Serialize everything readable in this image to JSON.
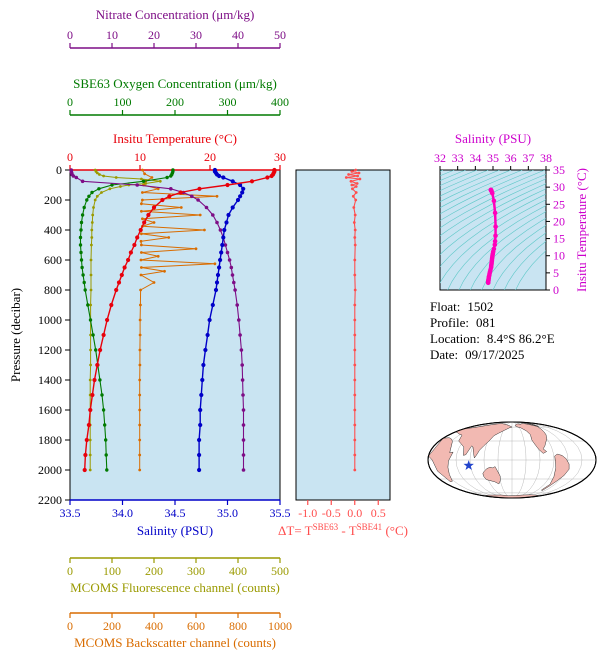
{
  "colors": {
    "nitrate": "#7d0d86",
    "oxygen": "#007a00",
    "temperature": "#e8000b",
    "salinity": "#0000c8",
    "fluorescence": "#9a9a00",
    "backscatter": "#d96c00",
    "deltaT": "#ff4d4d",
    "ts_line": "#ff00bb",
    "ts_labels": "#cc00cc",
    "plot_bg": "#c9e4f2",
    "contour": "#5ec8c8",
    "land": "#f2b9b2",
    "ocean": "#ffffff",
    "star": "#2244cc",
    "frame": "#000000"
  },
  "info": {
    "float_label": "Float:",
    "float_value": "1502",
    "profile_label": "Profile:",
    "profile_value": "081",
    "location_label": "Location:",
    "location_value": "8.4°S  86.2°E",
    "date_label": "Date:",
    "date_value": "09/17/2025"
  },
  "map": {
    "star_lon": 86.2,
    "star_lat": -8.4
  },
  "chart_data": [
    {
      "type": "line",
      "name": "bgc-float-profiles",
      "ylabel": "Pressure (decibar)",
      "ylim": [
        0,
        2200
      ],
      "yticks": [
        0,
        200,
        400,
        600,
        800,
        1000,
        1200,
        1400,
        1600,
        1800,
        2000,
        2200
      ],
      "x_axes": {
        "nitrate": {
          "title": "Nitrate Concentration (μm/kg)",
          "lim": [
            0,
            50
          ],
          "ticks": [
            0,
            10,
            20,
            30,
            40,
            50
          ]
        },
        "oxygen": {
          "title": "SBE63 Oxygen Concentration (μm/kg)",
          "lim": [
            0,
            400
          ],
          "ticks": [
            0,
            100,
            200,
            300,
            400
          ]
        },
        "temperature": {
          "title": "Insitu Temperature (°C)",
          "lim": [
            0,
            30
          ],
          "ticks": [
            0,
            10,
            20,
            30
          ]
        },
        "salinity": {
          "title": "Salinity (PSU)",
          "lim": [
            33.5,
            35.5
          ],
          "ticks": [
            33.5,
            34.0,
            34.5,
            35.0,
            35.5
          ],
          "tick_labels": [
            "33.5",
            "34.0",
            "34.5",
            "35.0",
            "35.5"
          ]
        },
        "fluorescence": {
          "title": "MCOMS Fluorescence channel (counts)",
          "lim": [
            0,
            500
          ],
          "ticks": [
            0,
            100,
            200,
            300,
            400,
            500
          ]
        },
        "backscatter": {
          "title": "MCOMS Backscatter channel (counts)",
          "lim": [
            0,
            1000
          ],
          "ticks": [
            0,
            200,
            400,
            600,
            800,
            1000
          ]
        }
      },
      "series": [
        {
          "axis": "backscatter",
          "lw": 1.0,
          "mr": 1.4,
          "pressure": [
            0,
            25,
            50,
            75,
            100,
            125,
            150,
            175,
            200,
            225,
            250,
            275,
            300,
            325,
            350,
            375,
            400,
            425,
            450,
            475,
            500,
            525,
            550,
            575,
            600,
            625,
            650,
            675,
            700,
            750,
            800,
            900,
            1000,
            1100,
            1200,
            1300,
            1400,
            1500,
            1600,
            1700,
            1800,
            1900,
            2000
          ],
          "values": [
            345,
            355,
            390,
            360,
            350,
            420,
            345,
            700,
            345,
            340,
            530,
            340,
            620,
            345,
            400,
            345,
            640,
            340,
            470,
            338,
            340,
            600,
            340,
            420,
            338,
            690,
            340,
            450,
            338,
            400,
            336,
            335,
            334,
            334,
            333,
            333,
            332,
            332,
            332,
            332,
            332,
            332,
            332
          ]
        },
        {
          "axis": "fluorescence",
          "lw": 1.0,
          "mr": 1.4,
          "pressure": [
            0,
            10,
            20,
            30,
            40,
            50,
            60,
            75,
            90,
            100,
            110,
            125,
            150,
            175,
            200,
            250,
            300,
            350,
            400,
            450,
            500,
            600,
            700,
            800,
            900,
            1000,
            1100,
            1200,
            1300,
            1400,
            1500,
            1600,
            1700,
            1800,
            1900,
            2000
          ],
          "values": [
            60,
            62,
            65,
            70,
            80,
            110,
            170,
            215,
            180,
            140,
            120,
            95,
            75,
            65,
            60,
            56,
            54,
            53,
            52,
            52,
            51,
            50,
            50,
            50,
            49,
            49,
            49,
            49,
            49,
            48,
            48,
            48,
            48,
            48,
            48,
            48
          ]
        },
        {
          "axis": "oxygen",
          "lw": 1.1,
          "mr": 1.7,
          "pressure": [
            0,
            10,
            20,
            30,
            40,
            50,
            75,
            100,
            125,
            150,
            175,
            200,
            250,
            300,
            350,
            400,
            450,
            500,
            550,
            600,
            650,
            700,
            750,
            800,
            900,
            1000,
            1100,
            1200,
            1300,
            1400,
            1500,
            1600,
            1700,
            1800,
            1900,
            2000
          ],
          "values": [
            196,
            196,
            195,
            194,
            192,
            185,
            140,
            80,
            55,
            42,
            36,
            32,
            27,
            24,
            22,
            21,
            20,
            20,
            21,
            22,
            23,
            25,
            27,
            29,
            34,
            39,
            44,
            49,
            53,
            57,
            61,
            64,
            66,
            68,
            69,
            70
          ]
        },
        {
          "axis": "nitrate",
          "lw": 1.1,
          "mr": 1.8,
          "pressure": [
            0,
            10,
            20,
            30,
            40,
            50,
            75,
            100,
            125,
            150,
            175,
            200,
            250,
            300,
            350,
            400,
            450,
            500,
            550,
            600,
            650,
            700,
            750,
            800,
            900,
            1000,
            1100,
            1200,
            1300,
            1400,
            1500,
            1600,
            1700,
            1800,
            1900,
            2000
          ],
          "values": [
            0.3,
            0.3,
            0.4,
            0.5,
            0.8,
            1.5,
            3.0,
            16.0,
            24.0,
            27.0,
            29.0,
            30.5,
            32.5,
            34.0,
            35.0,
            35.8,
            36.5,
            37.0,
            37.5,
            38.0,
            38.4,
            38.7,
            39.0,
            39.3,
            39.8,
            40.2,
            40.5,
            40.8,
            41.0,
            41.1,
            41.2,
            41.3,
            41.3,
            41.3,
            41.3,
            41.3
          ]
        },
        {
          "axis": "salinity",
          "lw": 1.4,
          "mr": 2.1,
          "pressure": [
            0,
            10,
            20,
            30,
            40,
            50,
            75,
            100,
            125,
            150,
            175,
            200,
            250,
            300,
            350,
            400,
            450,
            500,
            550,
            600,
            650,
            700,
            750,
            800,
            900,
            1000,
            1100,
            1200,
            1300,
            1400,
            1500,
            1600,
            1700,
            1800,
            1900,
            2000
          ],
          "values": [
            34.88,
            34.88,
            34.89,
            34.9,
            34.92,
            34.96,
            35.05,
            35.12,
            35.15,
            35.14,
            35.12,
            35.1,
            35.05,
            35.01,
            34.99,
            34.97,
            34.96,
            34.95,
            34.94,
            34.93,
            34.92,
            34.91,
            34.9,
            34.89,
            34.86,
            34.83,
            34.81,
            34.79,
            34.77,
            34.76,
            34.75,
            34.74,
            34.74,
            34.73,
            34.73,
            34.73
          ]
        },
        {
          "axis": "temperature",
          "lw": 1.4,
          "mr": 2.1,
          "pressure": [
            0,
            10,
            20,
            30,
            40,
            50,
            75,
            100,
            125,
            150,
            175,
            200,
            250,
            300,
            350,
            400,
            450,
            500,
            550,
            600,
            650,
            700,
            750,
            800,
            900,
            1000,
            1100,
            1200,
            1300,
            1400,
            1500,
            1600,
            1700,
            1800,
            1900,
            2000
          ],
          "values": [
            29.2,
            29.2,
            29.1,
            29.0,
            28.8,
            28.2,
            26.0,
            22.5,
            18.5,
            15.8,
            14.2,
            13.2,
            12.0,
            11.2,
            10.6,
            10.1,
            9.6,
            9.2,
            8.7,
            8.3,
            7.8,
            7.4,
            7.0,
            6.6,
            5.9,
            5.3,
            4.8,
            4.3,
            3.9,
            3.5,
            3.2,
            2.9,
            2.7,
            2.4,
            2.2,
            2.1
          ]
        }
      ]
    },
    {
      "type": "line",
      "name": "sbe63-minus-sbe41-temperature-difference",
      "xlabel_parts": {
        "p1": "ΔT= T",
        "sup1": "SBE63",
        "p2": " - T",
        "sup2": "SBE41",
        "p3": " (°C)"
      },
      "xlim": [
        -1.25,
        0.75
      ],
      "xticks": [
        -1.0,
        -0.5,
        0.0,
        0.5
      ],
      "xtick_labels": [
        "-1.0",
        "-0.5",
        "0.0",
        "0.5"
      ],
      "ylim": [
        0,
        2200
      ],
      "pressure": [
        0,
        10,
        20,
        30,
        40,
        50,
        60,
        75,
        90,
        100,
        110,
        125,
        150,
        175,
        200,
        250,
        300,
        350,
        400,
        450,
        500,
        600,
        700,
        800,
        900,
        1000,
        1100,
        1200,
        1300,
        1400,
        1500,
        1600,
        1700,
        1800,
        1900,
        2000
      ],
      "values": [
        0.02,
        -0.06,
        0.09,
        -0.13,
        0.06,
        -0.18,
        0.11,
        -0.08,
        0.05,
        -0.06,
        0.03,
        -0.05,
        0.03,
        -0.03,
        0.02,
        -0.02,
        0.01,
        -0.01,
        0.01,
        0.0,
        0.01,
        0.0,
        0.0,
        0.01,
        0.0,
        0.0,
        0.0,
        0.0,
        0.0,
        0.0,
        0.0,
        0.0,
        0.0,
        0.0,
        0.0,
        0.0
      ]
    },
    {
      "type": "scatter",
      "name": "ts-diagram",
      "xlabel": "Salinity (PSU)",
      "ylabel": "Insitu Temperature (°C)",
      "xlim": [
        32,
        38
      ],
      "xticks": [
        32,
        33,
        34,
        35,
        36,
        37,
        38
      ],
      "ylim": [
        0,
        35
      ],
      "yticks": [
        0,
        5,
        10,
        15,
        20,
        25,
        30,
        35
      ],
      "contour_levels": [
        18,
        18.5,
        19,
        19.5,
        20,
        20.5,
        21,
        21.5,
        22,
        22.5,
        23,
        23.5,
        24,
        24.5,
        25,
        25.5,
        26,
        26.5,
        27,
        27.5,
        28,
        28.5,
        29
      ],
      "salinity": [
        34.88,
        34.88,
        34.89,
        34.9,
        34.92,
        34.96,
        35.05,
        35.12,
        35.15,
        35.14,
        35.12,
        35.1,
        35.05,
        35.01,
        34.99,
        34.97,
        34.96,
        34.95,
        34.94,
        34.93,
        34.92,
        34.91,
        34.9,
        34.89,
        34.86,
        34.83,
        34.81,
        34.79,
        34.77,
        34.76,
        34.75,
        34.74,
        34.74,
        34.73,
        34.73,
        34.73
      ],
      "temperature": [
        29.2,
        29.2,
        29.1,
        29.0,
        28.8,
        28.2,
        26.0,
        22.5,
        18.5,
        15.8,
        14.2,
        13.2,
        12.0,
        11.2,
        10.6,
        10.1,
        9.6,
        9.2,
        8.7,
        8.3,
        7.8,
        7.4,
        7.0,
        6.6,
        5.9,
        5.3,
        4.8,
        4.3,
        3.9,
        3.5,
        3.2,
        2.9,
        2.7,
        2.4,
        2.2,
        2.1
      ]
    }
  ]
}
